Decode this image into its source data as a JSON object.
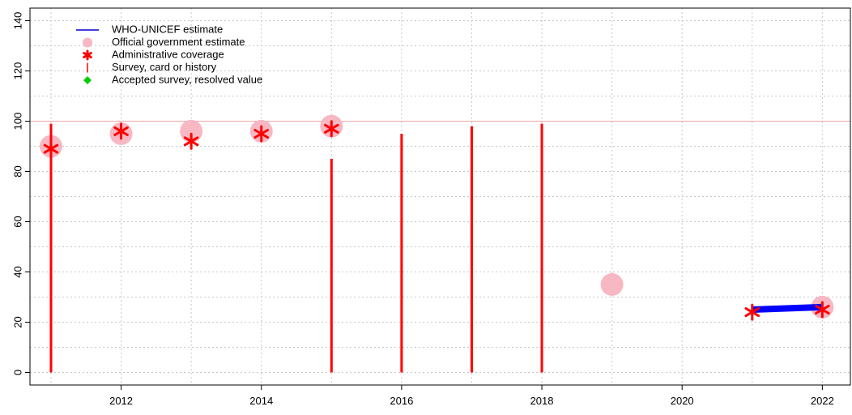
{
  "chart_data": {
    "type": "scatter",
    "title": "",
    "xlabel": "",
    "ylabel": "",
    "xlim": [
      2010.7,
      2022.4
    ],
    "ylim": [
      -5,
      145
    ],
    "grid": true,
    "legend_position": "top-left",
    "x_ticks": [
      2012,
      2014,
      2016,
      2018,
      2020,
      2022
    ],
    "x_tick_labels": [
      "2012",
      "2014",
      "2016",
      "2018",
      "2020",
      "2022"
    ],
    "y_ticks": [
      0,
      20,
      40,
      60,
      80,
      100,
      120,
      140
    ],
    "y_tick_labels": [
      "0",
      "20",
      "40",
      "60",
      "80",
      "100",
      "120",
      "140"
    ],
    "reference_line": {
      "y": 100,
      "color": "#f4a6a6"
    },
    "legend": [
      {
        "name": "WHO-UNICEF estimate",
        "symbol": "line",
        "color": "#0000cc"
      },
      {
        "name": "Official government estimate",
        "symbol": "circle",
        "color": "#f7b8c4"
      },
      {
        "name": "Administrative coverage",
        "symbol": "asterisk",
        "color": "#ff0000"
      },
      {
        "name": "Survey, card or history",
        "symbol": "vbar",
        "color": "#ff0000"
      },
      {
        "name": "Accepted survey, resolved value",
        "symbol": "diamond",
        "color": "#00cc00"
      }
    ],
    "series": [
      {
        "name": "WHO-UNICEF estimate",
        "color": "#0000ff",
        "x": [
          2021,
          2022
        ],
        "y": [
          25,
          26
        ]
      },
      {
        "name": "Official government estimate",
        "color": "#f7b8c4",
        "x": [
          2011,
          2012,
          2013,
          2014,
          2015,
          2019,
          2022
        ],
        "y": [
          90,
          95,
          96,
          96,
          98,
          35,
          26
        ]
      },
      {
        "name": "Administrative coverage",
        "color": "#ff0000",
        "x": [
          2011,
          2012,
          2013,
          2014,
          2015,
          2021,
          2022
        ],
        "y": [
          89,
          96,
          92,
          95,
          97,
          24,
          25
        ]
      },
      {
        "name": "Survey, card or history",
        "color": "#ff0000",
        "x": [
          2011,
          2015,
          2016,
          2017,
          2018
        ],
        "y": [
          99,
          85,
          95,
          98,
          99
        ]
      }
    ]
  }
}
